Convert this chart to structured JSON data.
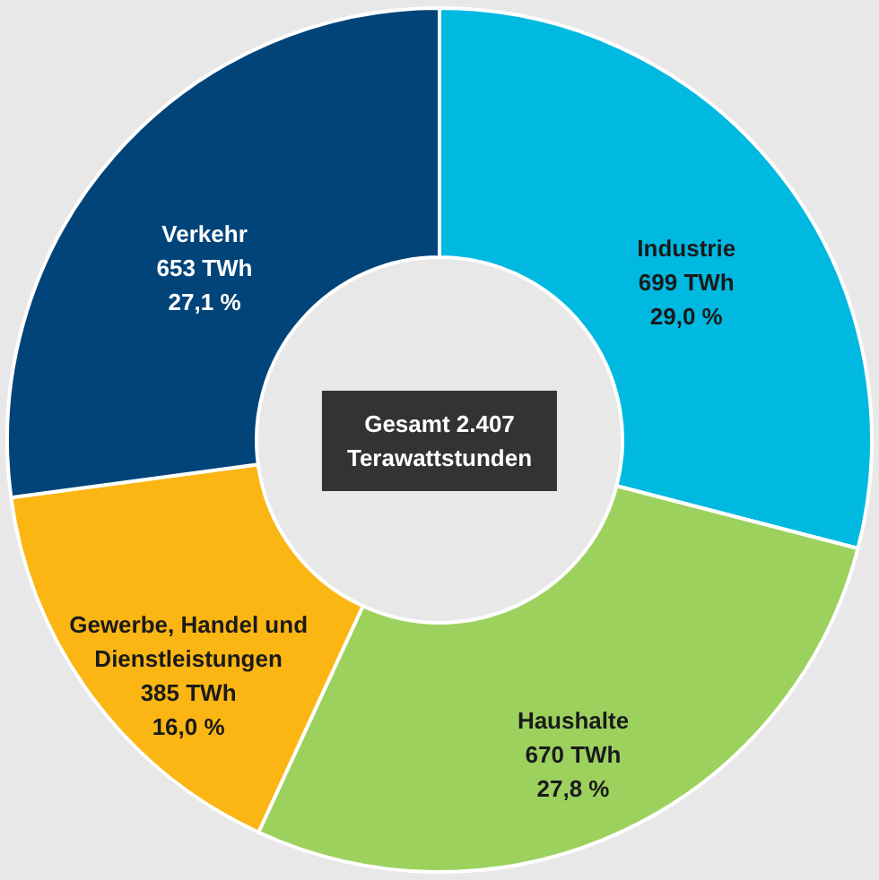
{
  "chart_data": {
    "type": "donut",
    "categories": [
      "Industrie",
      "Haushalte",
      "Gewerbe, Handel und Dienstleistungen",
      "Verkehr"
    ],
    "values": [
      699,
      670,
      385,
      653
    ],
    "value_labels": [
      "699 TWh\n29,0 %",
      "670 TWh\n27,8 %",
      "385 TWh\n16,0 %",
      "653 TWh\n27,1 %"
    ],
    "colors": [
      "#00b9e1",
      "#9dd15e",
      "#fbb614",
      "#004479"
    ],
    "annotations": [
      "Gesamt 2.407\nTerawattstunden"
    ]
  }
}
